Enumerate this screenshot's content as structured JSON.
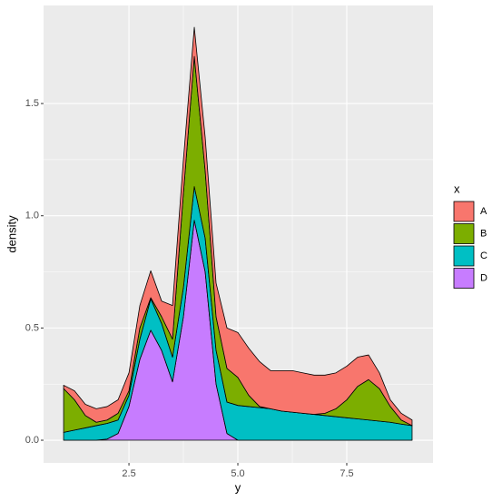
{
  "chart_data": {
    "type": "stacked_area",
    "xlabel": "y",
    "ylabel": "density",
    "legend_title": "x",
    "x": [
      1,
      1.25,
      1.5,
      1.75,
      2,
      2.25,
      2.5,
      2.75,
      3,
      3.25,
      3.5,
      3.75,
      4,
      4.25,
      4.5,
      4.75,
      5,
      5.25,
      5.5,
      5.75,
      6,
      6.25,
      6.5,
      6.75,
      7,
      7.25,
      7.5,
      7.75,
      8,
      8.25,
      8.5,
      8.75,
      9
    ],
    "series": [
      {
        "name": "D",
        "color": "#C77CFF",
        "values": [
          0,
          0,
          0,
          0,
          0.005,
          0.03,
          0.15,
          0.36,
          0.49,
          0.4,
          0.26,
          0.55,
          0.98,
          0.75,
          0.25,
          0.03,
          0,
          0,
          0,
          0,
          0,
          0,
          0,
          0,
          0,
          0,
          0,
          0,
          0,
          0,
          0,
          0,
          0
        ]
      },
      {
        "name": "C",
        "color": "#00BFC4",
        "values": [
          0.035,
          0.045,
          0.055,
          0.065,
          0.07,
          0.06,
          0.05,
          0.09,
          0.14,
          0.12,
          0.11,
          0.13,
          0.15,
          0.15,
          0.15,
          0.14,
          0.155,
          0.15,
          0.145,
          0.14,
          0.13,
          0.125,
          0.12,
          0.115,
          0.11,
          0.105,
          0.1,
          0.095,
          0.09,
          0.085,
          0.08,
          0.072,
          0.065
        ]
      },
      {
        "name": "B",
        "color": "#7CAE00",
        "values": [
          0.195,
          0.135,
          0.055,
          0.015,
          0.015,
          0.03,
          0.02,
          0.05,
          0.005,
          0.03,
          0.08,
          0.42,
          0.58,
          0.3,
          0.15,
          0.15,
          0.125,
          0.05,
          0.005,
          0,
          0,
          0,
          0,
          0,
          0.01,
          0.035,
          0.08,
          0.145,
          0.18,
          0.145,
          0.07,
          0.018,
          0
        ]
      },
      {
        "name": "A",
        "color": "#F8766D",
        "values": [
          0.015,
          0.04,
          0.05,
          0.06,
          0.06,
          0.06,
          0.08,
          0.1,
          0.12,
          0.07,
          0.15,
          0.15,
          0.13,
          0.15,
          0.15,
          0.18,
          0.2,
          0.21,
          0.2,
          0.17,
          0.18,
          0.185,
          0.18,
          0.175,
          0.17,
          0.16,
          0.15,
          0.13,
          0.11,
          0.07,
          0.03,
          0.03,
          0.025
        ]
      }
    ],
    "xlim": [
      0.54,
      9.48
    ],
    "ylim": [
      -0.101,
      1.937
    ],
    "xticks": [
      2.5,
      {
        "value": 5,
        "label": "5.0"
      },
      7.5
    ],
    "yticks": [
      {
        "value": 0,
        "label": "0.0"
      },
      0.5,
      {
        "value": 1,
        "label": "1.0"
      },
      1.5
    ],
    "grid": true
  }
}
